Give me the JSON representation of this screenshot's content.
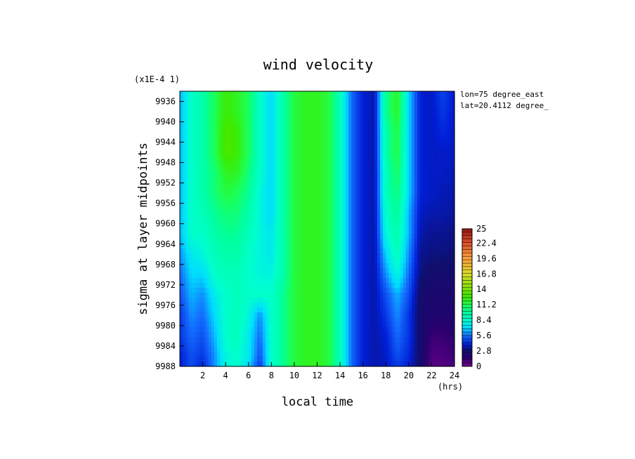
{
  "chart_data": {
    "type": "heatmap",
    "title": "wind velocity",
    "scale_label": "(x1E-4 1)",
    "xlabel": "local time",
    "xunit": "(hrs)",
    "ylabel": "sigma at layer midpoints",
    "annotations": [
      "lon=75 degree_east",
      "lat=20.4112 degree_"
    ],
    "xlim": [
      0,
      24
    ],
    "ylim": [
      9988,
      9934
    ],
    "x_ticks": [
      "2",
      "4",
      "6",
      "8",
      "10",
      "12",
      "14",
      "16",
      "18",
      "20",
      "22",
      "24"
    ],
    "y_ticks": [
      "9936",
      "9940",
      "9944",
      "9948",
      "9952",
      "9956",
      "9960",
      "9964",
      "9968",
      "9972",
      "9976",
      "9980",
      "9984",
      "9988"
    ],
    "colorbar": {
      "range": [
        0,
        25
      ],
      "ticks": [
        "25",
        "22.4",
        "19.6",
        "16.8",
        "14",
        "11.2",
        "8.4",
        "5.6",
        "2.8",
        "0"
      ]
    },
    "x": [
      0,
      1,
      2,
      3,
      4,
      5,
      6,
      7,
      8,
      9,
      10,
      11,
      12,
      13,
      14,
      15,
      16,
      17,
      18,
      19,
      20,
      21,
      22,
      23,
      24
    ],
    "y": [
      9934,
      9938,
      9942,
      9946,
      9950,
      9954,
      9958,
      9962,
      9966,
      9970,
      9974,
      9978,
      9982,
      9986,
      9988
    ],
    "z": [
      [
        6.5,
        8.5,
        9.5,
        11,
        12.5,
        12,
        11,
        8.5,
        7,
        9.5,
        11.5,
        12,
        12,
        11.5,
        9,
        5.5,
        4,
        3.5,
        10,
        12,
        7,
        4,
        3.8,
        4.8,
        3.8
      ],
      [
        6.5,
        8.5,
        9.5,
        11,
        12.5,
        12,
        11,
        8.5,
        7,
        9.5,
        11.5,
        12,
        12,
        11.5,
        9,
        5.5,
        4,
        3.5,
        10,
        12,
        7,
        4,
        3.8,
        4.5,
        3.8
      ],
      [
        6.5,
        8.5,
        9.5,
        11,
        13,
        12.5,
        11,
        8.5,
        7,
        9.5,
        11.5,
        12,
        12,
        11.5,
        9,
        5.5,
        4,
        3.5,
        9.5,
        11.5,
        7,
        4,
        3.8,
        4.2,
        3.8
      ],
      [
        6.5,
        8.5,
        9.5,
        11,
        13,
        12.5,
        11,
        8.5,
        7,
        9.5,
        11.5,
        12,
        12,
        11.5,
        9,
        5.5,
        4,
        3.5,
        9.5,
        11.5,
        7,
        4,
        3.8,
        3.8,
        3.8
      ],
      [
        6.5,
        8.5,
        9.5,
        10.5,
        12,
        12,
        10.5,
        8.5,
        7,
        9.5,
        11.5,
        12,
        12,
        11.5,
        9,
        5.5,
        4,
        3.5,
        9,
        11,
        7,
        4,
        3.8,
        3.8,
        3.6
      ],
      [
        6.5,
        8.5,
        9.5,
        10.5,
        11.5,
        11,
        10,
        8,
        7,
        9.5,
        11.5,
        12,
        12,
        11.5,
        9,
        5.5,
        4,
        3.5,
        9,
        10.5,
        7,
        4,
        3.8,
        3.6,
        3.5
      ],
      [
        6.5,
        8.5,
        9,
        10,
        10.5,
        10.5,
        9.5,
        8,
        7,
        9.5,
        11.5,
        12,
        12,
        11.5,
        9,
        5.5,
        4,
        3.5,
        8.5,
        10,
        6.5,
        3.8,
        3.5,
        3.5,
        3.3
      ],
      [
        6.5,
        8.5,
        8.5,
        9.5,
        10,
        10,
        9,
        8,
        7.5,
        9.5,
        11.5,
        12,
        12,
        11.5,
        9,
        5.5,
        4,
        3.5,
        8,
        9.5,
        6.5,
        3.5,
        3.2,
        3.2,
        3.0
      ],
      [
        6,
        7.5,
        8,
        9,
        9.5,
        9.5,
        8.5,
        8,
        7.5,
        9.5,
        11.5,
        12,
        12,
        11.5,
        9,
        5.5,
        4,
        3.5,
        7,
        9,
        6,
        3.2,
        3,
        3,
        2.8
      ],
      [
        5.5,
        7,
        7,
        8.5,
        9,
        9,
        8.5,
        8,
        8,
        9.5,
        11.5,
        12,
        12,
        11.5,
        9,
        5.5,
        4,
        3.5,
        6,
        8,
        5.5,
        3,
        2.5,
        2.5,
        2.5
      ],
      [
        5,
        6.5,
        6,
        7.5,
        8.5,
        9,
        8.5,
        8.5,
        8.5,
        10,
        11.5,
        12,
        12,
        11.5,
        9,
        5.5,
        4,
        3.5,
        5,
        6.5,
        5,
        2.5,
        2.2,
        2.2,
        2.2
      ],
      [
        4.5,
        6,
        5.5,
        7,
        8.5,
        9,
        8,
        6,
        8.5,
        10,
        11.5,
        12,
        12,
        11.5,
        9,
        5.5,
        4,
        3.5,
        4.5,
        6,
        4.5,
        2.5,
        2,
        2,
        2
      ],
      [
        4.5,
        5.5,
        5,
        6.5,
        8.5,
        9,
        7.5,
        5.5,
        8.5,
        10,
        11.5,
        12,
        12,
        11.5,
        9,
        5.5,
        4,
        3.5,
        4,
        5.5,
        4.5,
        2.5,
        1.2,
        1.2,
        1.5
      ],
      [
        4,
        5,
        4.5,
        6,
        8,
        8.5,
        7.5,
        5,
        8.5,
        10,
        11.5,
        12,
        12,
        11.5,
        9,
        5.5,
        4,
        3.5,
        3.8,
        5,
        4.2,
        2.5,
        0.8,
        0.8,
        1.2
      ],
      [
        4,
        5,
        4,
        6,
        8,
        8.5,
        7,
        4.5,
        8.5,
        10,
        11.5,
        12,
        12,
        11.5,
        9,
        5.5,
        4,
        3.5,
        3.8,
        4.5,
        4,
        2.5,
        0.6,
        0.6,
        1
      ]
    ]
  }
}
